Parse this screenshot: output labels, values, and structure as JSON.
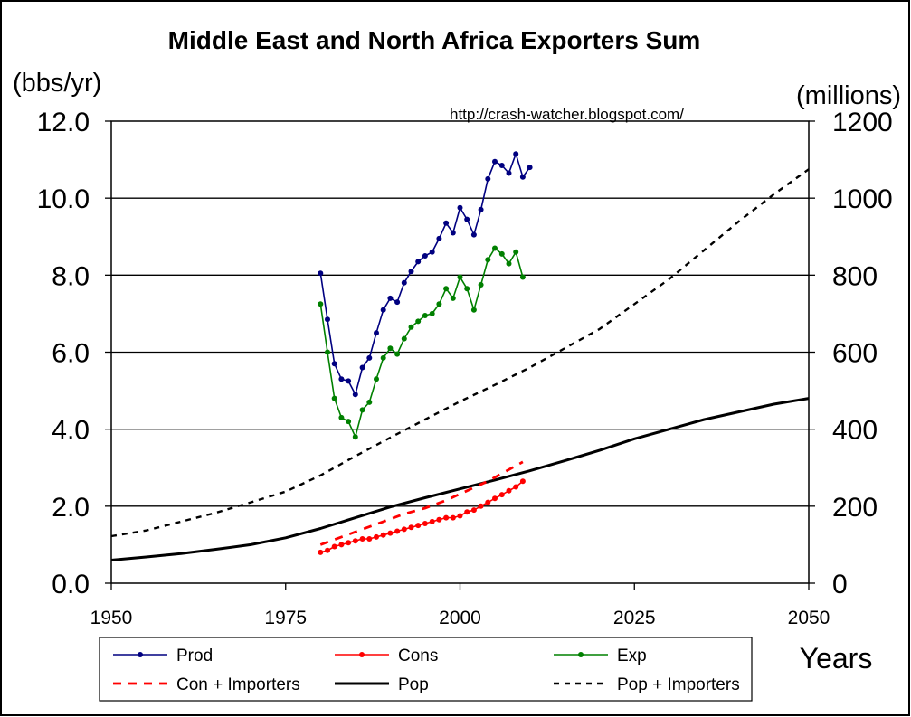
{
  "chart_data": {
    "type": "line",
    "title": "Middle East and North Africa Exporters Sum",
    "source_url": "http://crash-watcher.blogspot.com/",
    "y_left_unit": "(bbs/yr)",
    "y_right_unit": "(millions)",
    "xlabel": "Years",
    "xlim": [
      1950,
      2050
    ],
    "ylim_left": [
      0,
      12
    ],
    "ylim_right": [
      0,
      1200
    ],
    "x_ticks": [
      "1950",
      "1975",
      "2000",
      "2025",
      "2050"
    ],
    "y_left_ticks": [
      "0.0",
      "2.0",
      "4.0",
      "6.0",
      "8.0",
      "10.0",
      "12.0"
    ],
    "y_right_ticks": [
      "0",
      "200",
      "400",
      "600",
      "800",
      "1000",
      "1200"
    ],
    "grid": "horizontal",
    "legend_position": "bottom",
    "series": [
      {
        "name": "Prod",
        "axis": "left",
        "color": "#000080",
        "style": "line-marker",
        "x": [
          1980,
          1981,
          1982,
          1983,
          1984,
          1985,
          1986,
          1987,
          1988,
          1989,
          1990,
          1991,
          1992,
          1993,
          1994,
          1995,
          1996,
          1997,
          1998,
          1999,
          2000,
          2001,
          2002,
          2003,
          2004,
          2005,
          2006,
          2007,
          2008,
          2009,
          2010
        ],
        "y": [
          8.05,
          6.85,
          5.7,
          5.3,
          5.25,
          4.9,
          5.6,
          5.85,
          6.5,
          7.1,
          7.4,
          7.3,
          7.8,
          8.1,
          8.35,
          8.5,
          8.6,
          8.95,
          9.35,
          9.1,
          9.75,
          9.45,
          9.05,
          9.7,
          10.5,
          10.95,
          10.85,
          10.65,
          11.15,
          10.55,
          10.8
        ]
      },
      {
        "name": "Cons",
        "axis": "left",
        "color": "#FF0000",
        "style": "line-marker",
        "x": [
          1980,
          1981,
          1982,
          1983,
          1984,
          1985,
          1986,
          1987,
          1988,
          1989,
          1990,
          1991,
          1992,
          1993,
          1994,
          1995,
          1996,
          1997,
          1998,
          1999,
          2000,
          2001,
          2002,
          2003,
          2004,
          2005,
          2006,
          2007,
          2008,
          2009
        ],
        "y": [
          0.8,
          0.85,
          0.95,
          1.0,
          1.05,
          1.1,
          1.15,
          1.15,
          1.2,
          1.25,
          1.3,
          1.35,
          1.4,
          1.45,
          1.5,
          1.55,
          1.6,
          1.65,
          1.7,
          1.7,
          1.75,
          1.85,
          1.9,
          2.0,
          2.1,
          2.2,
          2.3,
          2.4,
          2.5,
          2.65
        ]
      },
      {
        "name": "Exp",
        "axis": "left",
        "color": "#008000",
        "style": "line-marker",
        "x": [
          1980,
          1981,
          1982,
          1983,
          1984,
          1985,
          1986,
          1987,
          1988,
          1989,
          1990,
          1991,
          1992,
          1993,
          1994,
          1995,
          1996,
          1997,
          1998,
          1999,
          2000,
          2001,
          2002,
          2003,
          2004,
          2005,
          2006,
          2007,
          2008,
          2009
        ],
        "y": [
          7.25,
          6.0,
          4.8,
          4.3,
          4.2,
          3.8,
          4.5,
          4.7,
          5.3,
          5.85,
          6.1,
          5.95,
          6.35,
          6.65,
          6.8,
          6.95,
          7.0,
          7.25,
          7.65,
          7.4,
          7.95,
          7.65,
          7.1,
          7.75,
          8.4,
          8.7,
          8.55,
          8.3,
          8.6,
          7.95
        ]
      },
      {
        "name": "Con + Importers",
        "axis": "left",
        "color": "#FF0000",
        "style": "dashed",
        "x": [
          1980,
          1983,
          1986,
          1989,
          1992,
          1995,
          1998,
          2001,
          2004,
          2007,
          2009
        ],
        "y": [
          1.0,
          1.2,
          1.4,
          1.6,
          1.8,
          1.95,
          2.15,
          2.4,
          2.65,
          2.95,
          3.15
        ]
      },
      {
        "name": "Pop",
        "axis": "right",
        "color": "#000000",
        "style": "solid",
        "x": [
          1950,
          1955,
          1960,
          1965,
          1970,
          1975,
          1980,
          1985,
          1990,
          1995,
          2000,
          2005,
          2010,
          2015,
          2020,
          2025,
          2030,
          2035,
          2040,
          2045,
          2050
        ],
        "y": [
          60,
          68,
          77,
          88,
          100,
          118,
          142,
          170,
          198,
          222,
          245,
          268,
          292,
          318,
          345,
          375,
          400,
          425,
          445,
          465,
          480
        ]
      },
      {
        "name": "Pop + Importers",
        "axis": "right",
        "color": "#000000",
        "style": "dashed",
        "x": [
          1950,
          1955,
          1960,
          1965,
          1970,
          1975,
          1980,
          1985,
          1990,
          1995,
          2000,
          2005,
          2010,
          2015,
          2020,
          2025,
          2030,
          2035,
          2040,
          2045,
          2050
        ],
        "y": [
          122,
          137,
          160,
          183,
          210,
          238,
          280,
          330,
          378,
          425,
          472,
          515,
          560,
          610,
          660,
          725,
          790,
          865,
          940,
          1010,
          1075
        ]
      }
    ]
  }
}
